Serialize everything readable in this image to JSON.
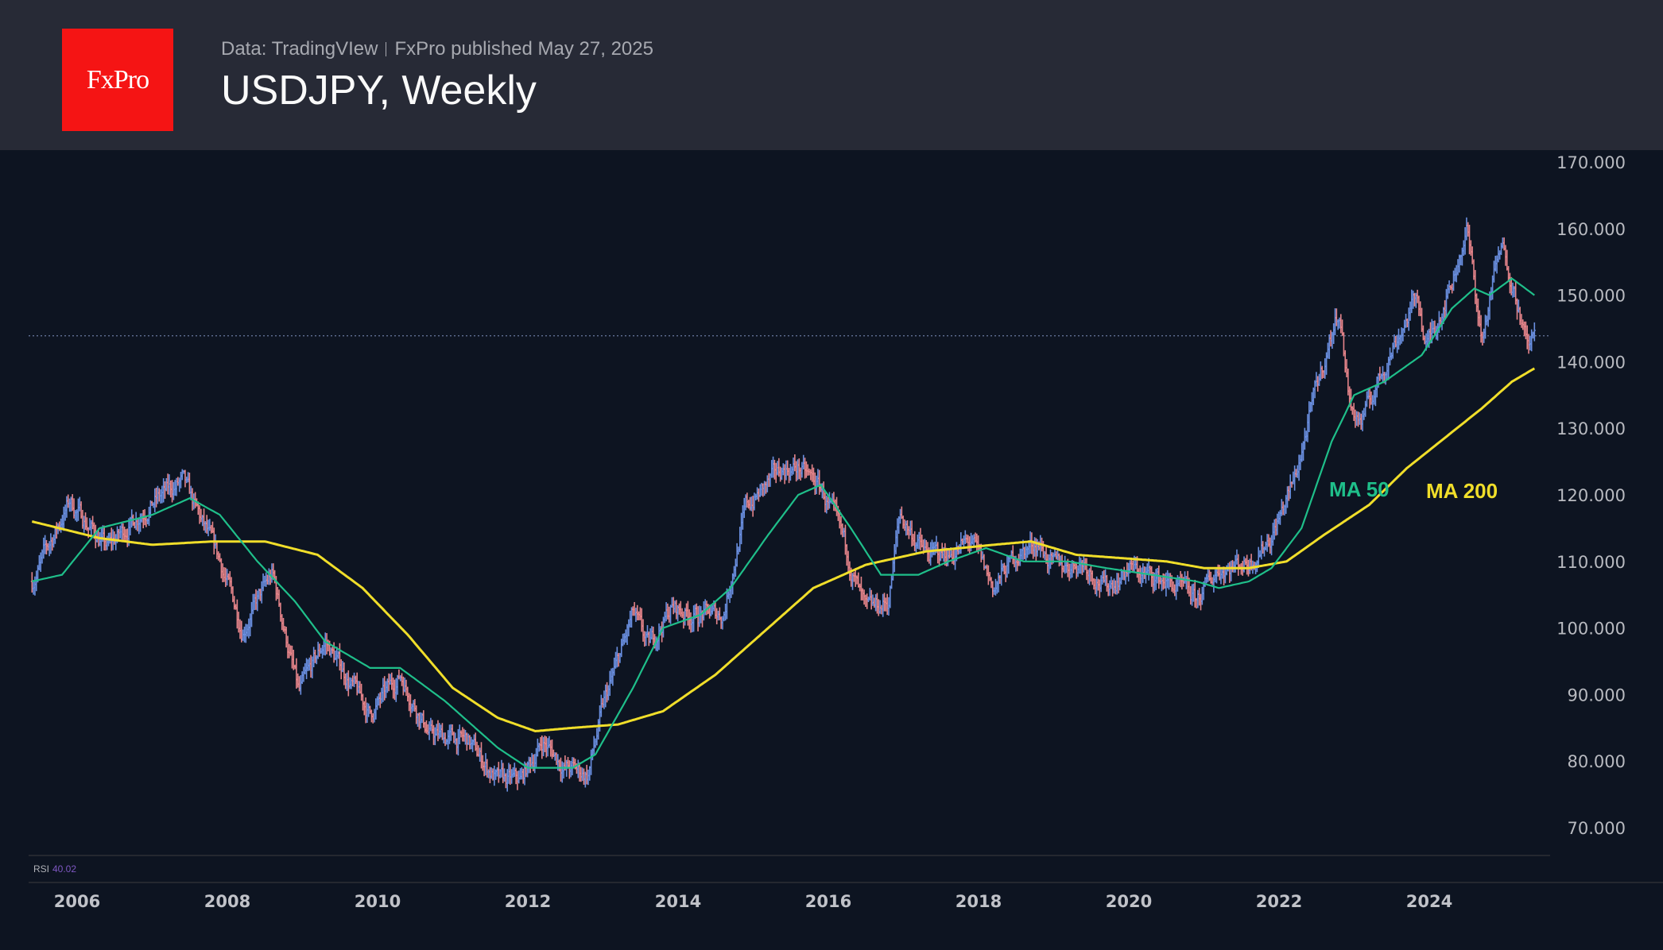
{
  "header": {
    "logo_text": "FxPro",
    "source": "Data: TradingVIew",
    "published": "FxPro published May 27, 2025",
    "title": "USDJPY, Weekly"
  },
  "rsi": {
    "label": "RSI",
    "value": "40.02"
  },
  "colors": {
    "up": "#6a8fe0",
    "down": "#e5848a",
    "ma50": "#1fbf8a",
    "ma200": "#f0de2a",
    "rsi_value": "#7e57c2"
  },
  "chart_data": {
    "type": "line",
    "title": "USDJPY, Weekly",
    "ylim": [
      70,
      170
    ],
    "xlim": [
      2005.4,
      2025.4
    ],
    "y_ticks": [
      "170.000",
      "160.000",
      "150.000",
      "140.000",
      "130.000",
      "120.000",
      "110.000",
      "100.000",
      "90.000",
      "80.000",
      "70.000"
    ],
    "x_ticks": [
      "2006",
      "2008",
      "2010",
      "2012",
      "2014",
      "2016",
      "2018",
      "2020",
      "2022",
      "2024"
    ],
    "last_price": 143.9,
    "grid": false,
    "series": [
      {
        "name": "USDJPY",
        "kind": "ohlc-bars",
        "x": [
          2005.4,
          2005.9,
          2006.4,
          2006.9,
          2007.4,
          2007.9,
          2008.2,
          2008.6,
          2008.95,
          2009.3,
          2009.9,
          2010.3,
          2010.7,
          2011.2,
          2011.6,
          2011.9,
          2012.2,
          2012.5,
          2012.8,
          2013.0,
          2013.4,
          2013.6,
          2013.9,
          2014.2,
          2014.6,
          2014.9,
          2015.4,
          2015.6,
          2015.9,
          2016.2,
          2016.5,
          2016.8,
          2016.95,
          2017.3,
          2017.6,
          2017.9,
          2018.2,
          2018.5,
          2018.8,
          2019.0,
          2019.4,
          2019.7,
          2020.0,
          2020.2,
          2020.5,
          2020.9,
          2021.2,
          2021.6,
          2021.9,
          2022.2,
          2022.5,
          2022.8,
          2022.95,
          2023.1,
          2023.5,
          2023.85,
          2023.95,
          2024.3,
          2024.5,
          2024.7,
          2024.9,
          2025.0,
          2025.2,
          2025.3,
          2025.4
        ],
        "values": [
          107,
          119,
          112,
          118,
          122,
          110,
          100,
          108,
          90,
          98,
          87,
          93,
          84,
          83,
          77,
          77,
          83,
          79,
          78,
          88,
          102,
          97,
          103,
          102,
          102,
          118,
          124,
          124,
          121,
          113,
          102,
          104,
          117,
          111,
          111,
          113,
          106,
          111,
          113,
          109,
          110,
          106,
          109,
          108,
          107,
          104,
          109,
          110,
          114,
          122,
          136,
          148,
          133,
          131,
          142,
          150,
          142,
          152,
          160,
          143,
          155,
          157,
          148,
          142,
          144
        ]
      },
      {
        "name": "MA 50",
        "x": [
          2005.4,
          2005.8,
          2006.3,
          2007.0,
          2007.5,
          2007.9,
          2008.4,
          2008.9,
          2009.3,
          2009.9,
          2010.3,
          2010.9,
          2011.6,
          2012.0,
          2012.6,
          2012.9,
          2013.4,
          2013.8,
          2014.3,
          2014.7,
          2015.2,
          2015.6,
          2015.9,
          2016.3,
          2016.7,
          2017.2,
          2017.6,
          2018.1,
          2018.6,
          2019.2,
          2019.7,
          2020.3,
          2020.9,
          2021.2,
          2021.6,
          2021.9,
          2022.3,
          2022.7,
          2023.0,
          2023.4,
          2023.9,
          2024.3,
          2024.6,
          2024.8,
          2025.1,
          2025.4
        ],
        "values": [
          107,
          108,
          115,
          117,
          119.5,
          117,
          110,
          104,
          98,
          94,
          94,
          89,
          82,
          79,
          79,
          81,
          91,
          100,
          102,
          106,
          114,
          120,
          121.5,
          115,
          108,
          108,
          110,
          112,
          110,
          110,
          109,
          108,
          107,
          106,
          107,
          109,
          115,
          128,
          135,
          137,
          141,
          148,
          151,
          150,
          152.5,
          150
        ]
      },
      {
        "name": "MA 200",
        "x": [
          2005.4,
          2006.3,
          2007.0,
          2007.8,
          2008.5,
          2009.2,
          2009.8,
          2010.4,
          2011.0,
          2011.6,
          2012.1,
          2012.6,
          2013.2,
          2013.8,
          2014.5,
          2015.2,
          2015.8,
          2016.5,
          2017.3,
          2018.2,
          2018.7,
          2019.3,
          2019.9,
          2020.5,
          2021.0,
          2021.6,
          2022.1,
          2022.6,
          2023.2,
          2023.7,
          2024.2,
          2024.7,
          2025.1,
          2025.4
        ],
        "values": [
          116,
          113.5,
          112.5,
          113,
          113,
          111,
          106,
          99,
          91,
          86.5,
          84.5,
          85,
          85.5,
          87.5,
          93,
          100,
          106,
          109.5,
          111.5,
          112.5,
          113,
          111,
          110.5,
          110,
          109,
          109,
          110,
          114,
          118.5,
          124,
          128.5,
          133,
          137,
          139
        ]
      }
    ]
  }
}
